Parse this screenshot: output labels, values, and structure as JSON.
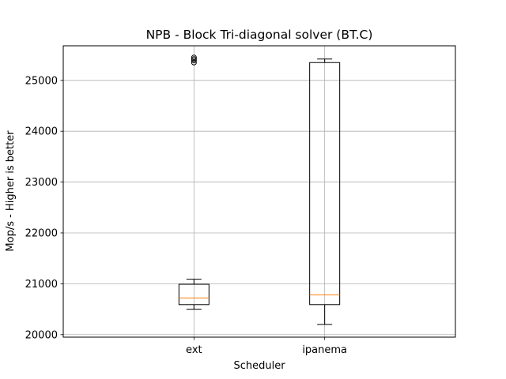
{
  "chart_data": {
    "type": "boxplot",
    "title": "NPB - Block Tri-diagonal solver (BT.C)",
    "xlabel": "Scheduler",
    "ylabel": "Mop/s - Higher is better",
    "categories": [
      "ext",
      "ipanema"
    ],
    "yticks": [
      20000,
      21000,
      22000,
      23000,
      24000,
      25000
    ],
    "ylim": [
      19950,
      25680
    ],
    "grid": true,
    "colors": {
      "box": "#000000",
      "median": "#ff7f0e",
      "grid": "#b0b0b0"
    },
    "boxes": [
      {
        "category": "ext",
        "whisker_low": 20500,
        "q1": 20590,
        "median": 20720,
        "q3": 20990,
        "whisker_high": 21090,
        "outliers": [
          25350,
          25390,
          25420,
          25450
        ]
      },
      {
        "category": "ipanema",
        "whisker_low": 20200,
        "q1": 20590,
        "median": 20780,
        "q3": 25350,
        "whisker_high": 25420,
        "outliers": []
      }
    ]
  }
}
